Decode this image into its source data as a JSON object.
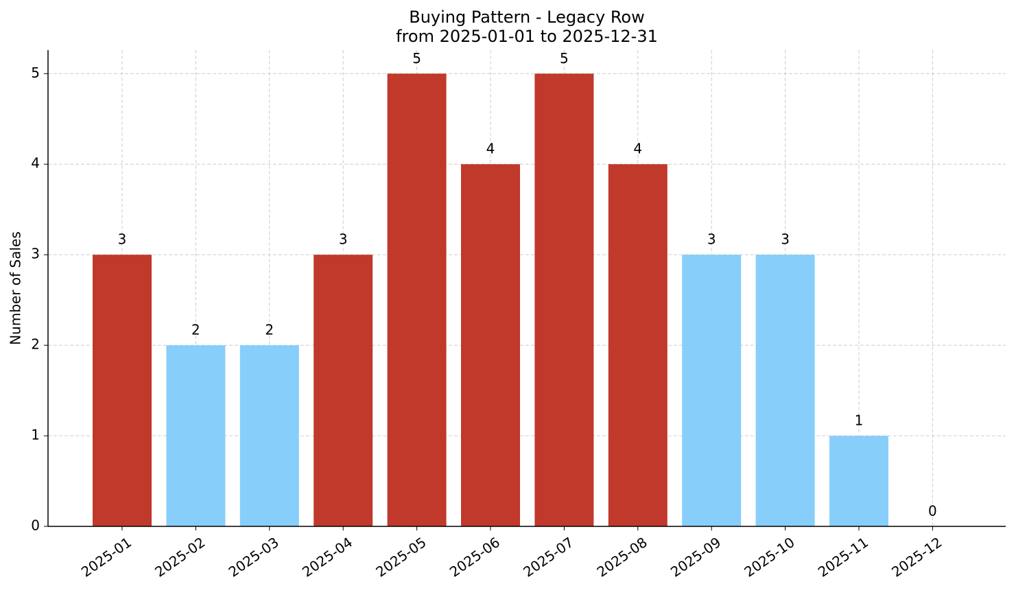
{
  "chart_data": {
    "type": "bar",
    "title": "Buying Pattern - Legacy Row",
    "subtitle": "from 2025-01-01 to 2025-12-31",
    "y_label": "Number of Sales",
    "categories": [
      "2025-01",
      "2025-02",
      "2025-03",
      "2025-04",
      "2025-05",
      "2025-06",
      "2025-07",
      "2025-08",
      "2025-09",
      "2025-10",
      "2025-11",
      "2025-12"
    ],
    "values": [
      3,
      2,
      2,
      3,
      5,
      4,
      5,
      4,
      3,
      3,
      1,
      0
    ],
    "colors": [
      "#c0392b",
      "#87cefa",
      "#87cefa",
      "#c0392b",
      "#c0392b",
      "#c0392b",
      "#c0392b",
      "#c0392b",
      "#87cefa",
      "#87cefa",
      "#87cefa",
      "#87cefa"
    ],
    "ylim": [
      0,
      5.26
    ],
    "yticks": [
      0,
      1,
      2,
      3,
      4,
      5
    ],
    "grid": true
  }
}
